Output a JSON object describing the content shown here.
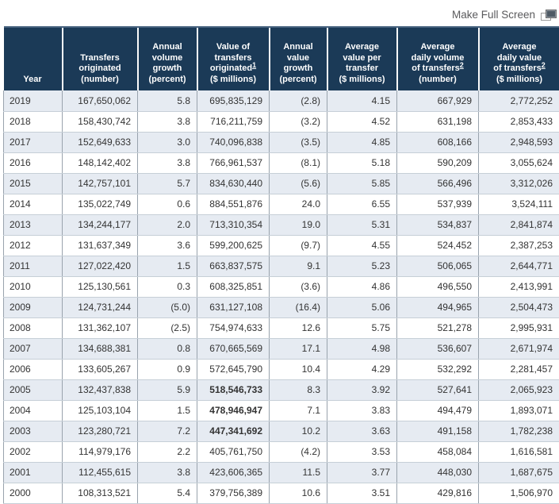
{
  "toolbar": {
    "fullscreen_label": "Make Full Screen",
    "fullscreen_icon": "window-restore-icon"
  },
  "colors": {
    "header_bg": "#1b3a57",
    "row_alt_bg": "#e6ebf2",
    "link_gray": "#5a5a5c"
  },
  "table": {
    "columns": [
      {
        "lines": [
          "Year"
        ],
        "sup": "",
        "unit": ""
      },
      {
        "lines": [
          "Transfers",
          "originated"
        ],
        "sup": "",
        "unit": "(number)"
      },
      {
        "lines": [
          "Annual",
          "volume",
          "growth"
        ],
        "sup": "",
        "unit": "(percent)"
      },
      {
        "lines": [
          "Value of",
          "transfers",
          "originated"
        ],
        "sup": "1",
        "unit": "($ millions)"
      },
      {
        "lines": [
          "Annual",
          "value",
          "growth"
        ],
        "sup": "",
        "unit": "(percent)"
      },
      {
        "lines": [
          "Average",
          "value per",
          "transfer"
        ],
        "sup": "",
        "unit": "($ millions)"
      },
      {
        "lines": [
          "Average",
          "daily volume",
          "of transfers"
        ],
        "sup": "2",
        "unit": "(number)"
      },
      {
        "lines": [
          "Average",
          "daily value",
          "of transfers"
        ],
        "sup": "2",
        "unit": "($ millions)"
      }
    ],
    "rows": [
      {
        "year": "2019",
        "values": [
          "167,650,062",
          "5.8",
          "695,835,129",
          "(2.8)",
          "4.15",
          "667,929",
          "2,772,252"
        ],
        "bold_cols": []
      },
      {
        "year": "2018",
        "values": [
          "158,430,742",
          "3.8",
          "716,211,759",
          "(3.2)",
          "4.52",
          "631,198",
          "2,853,433"
        ],
        "bold_cols": []
      },
      {
        "year": "2017",
        "values": [
          "152,649,633",
          "3.0",
          "740,096,838",
          "(3.5)",
          "4.85",
          "608,166",
          "2,948,593"
        ],
        "bold_cols": []
      },
      {
        "year": "2016",
        "values": [
          "148,142,402",
          "3.8",
          "766,961,537",
          "(8.1)",
          "5.18",
          "590,209",
          "3,055,624"
        ],
        "bold_cols": []
      },
      {
        "year": "2015",
        "values": [
          "142,757,101",
          "5.7",
          "834,630,440",
          "(5.6)",
          "5.85",
          "566,496",
          "3,312,026"
        ],
        "bold_cols": []
      },
      {
        "year": "2014",
        "values": [
          "135,022,749",
          "0.6",
          "884,551,876",
          "24.0",
          "6.55",
          "537,939",
          "3,524,111"
        ],
        "bold_cols": []
      },
      {
        "year": "2013",
        "values": [
          "134,244,177",
          "2.0",
          "713,310,354",
          "19.0",
          "5.31",
          "534,837",
          "2,841,874"
        ],
        "bold_cols": []
      },
      {
        "year": "2012",
        "values": [
          "131,637,349",
          "3.6",
          "599,200,625",
          "(9.7)",
          "4.55",
          "524,452",
          "2,387,253"
        ],
        "bold_cols": []
      },
      {
        "year": "2011",
        "values": [
          "127,022,420",
          "1.5",
          "663,837,575",
          "9.1",
          "5.23",
          "506,065",
          "2,644,771"
        ],
        "bold_cols": []
      },
      {
        "year": "2010",
        "values": [
          "125,130,561",
          "0.3",
          "608,325,851",
          "(3.6)",
          "4.86",
          "496,550",
          "2,413,991"
        ],
        "bold_cols": []
      },
      {
        "year": "2009",
        "values": [
          "124,731,244",
          "(5.0)",
          "631,127,108",
          "(16.4)",
          "5.06",
          "494,965",
          "2,504,473"
        ],
        "bold_cols": []
      },
      {
        "year": "2008",
        "values": [
          "131,362,107",
          "(2.5)",
          "754,974,633",
          "12.6",
          "5.75",
          "521,278",
          "2,995,931"
        ],
        "bold_cols": []
      },
      {
        "year": "2007",
        "values": [
          "134,688,381",
          "0.8",
          "670,665,569",
          "17.1",
          "4.98",
          "536,607",
          "2,671,974"
        ],
        "bold_cols": []
      },
      {
        "year": "2006",
        "values": [
          "133,605,267",
          "0.9",
          "572,645,790",
          "10.4",
          "4.29",
          "532,292",
          "2,281,457"
        ],
        "bold_cols": []
      },
      {
        "year": "2005",
        "values": [
          "132,437,838",
          "5.9",
          "518,546,733",
          "8.3",
          "3.92",
          "527,641",
          "2,065,923"
        ],
        "bold_cols": [
          2
        ]
      },
      {
        "year": "2004",
        "values": [
          "125,103,104",
          "1.5",
          "478,946,947",
          "7.1",
          "3.83",
          "494,479",
          "1,893,071"
        ],
        "bold_cols": [
          2
        ]
      },
      {
        "year": "2003",
        "values": [
          "123,280,721",
          "7.2",
          "447,341,692",
          "10.2",
          "3.63",
          "491,158",
          "1,782,238"
        ],
        "bold_cols": [
          2
        ]
      },
      {
        "year": "2002",
        "values": [
          "114,979,176",
          "2.2",
          "405,761,750",
          "(4.2)",
          "3.53",
          "458,084",
          "1,616,581"
        ],
        "bold_cols": []
      },
      {
        "year": "2001",
        "values": [
          "112,455,615",
          "3.8",
          "423,606,365",
          "11.5",
          "3.77",
          "448,030",
          "1,687,675"
        ],
        "bold_cols": []
      },
      {
        "year": "2000",
        "values": [
          "108,313,521",
          "5.4",
          "379,756,389",
          "10.6",
          "3.51",
          "429,816",
          "1,506,970"
        ],
        "bold_cols": []
      }
    ]
  }
}
